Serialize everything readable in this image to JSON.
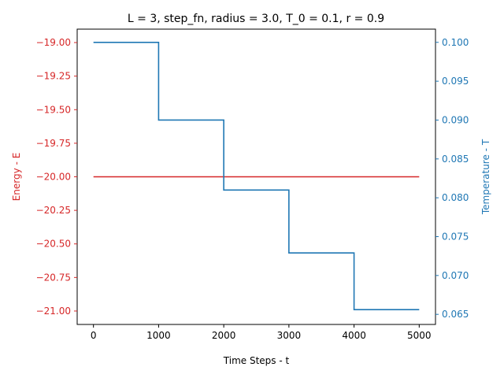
{
  "chart_data": {
    "type": "line",
    "title": "L = 3, step_fn, radius = 3.0, T_0 = 0.1, r = 0.9",
    "xlabel": "Time Steps - t",
    "ylabel_left": "Energy - E",
    "ylabel_right": "Temperature - T",
    "xlim": [
      -250,
      5250
    ],
    "ylim_left": [
      -21.1,
      -18.9
    ],
    "ylim_right": [
      0.0637,
      0.1017
    ],
    "xticks": [
      0,
      1000,
      2000,
      3000,
      4000,
      5000
    ],
    "xtick_labels": [
      "0",
      "1000",
      "2000",
      "3000",
      "4000",
      "5000"
    ],
    "yticks_left": [
      -19.0,
      -19.25,
      -19.5,
      -19.75,
      -20.0,
      -20.25,
      -20.5,
      -20.75,
      -21.0
    ],
    "ytick_labels_left": [
      "−19.00",
      "−19.25",
      "−19.50",
      "−19.75",
      "−20.00",
      "−20.25",
      "−20.50",
      "−20.75",
      "−21.00"
    ],
    "yticks_right": [
      0.065,
      0.07,
      0.075,
      0.08,
      0.085,
      0.09,
      0.095,
      0.1
    ],
    "ytick_labels_right": [
      "0.065",
      "0.070",
      "0.075",
      "0.080",
      "0.085",
      "0.090",
      "0.095",
      "0.100"
    ],
    "grid": false,
    "series": [
      {
        "axis": "left",
        "color": "#d62728",
        "x": [
          0,
          5000
        ],
        "y": [
          -20.0,
          -20.0
        ]
      },
      {
        "axis": "right",
        "color": "#1f77b4",
        "step": true,
        "x": [
          0,
          1000,
          1000,
          2000,
          2000,
          3000,
          3000,
          4000,
          4000,
          5000
        ],
        "y": [
          0.1,
          0.1,
          0.09,
          0.09,
          0.081,
          0.081,
          0.0729,
          0.0729,
          0.06561,
          0.06561
        ]
      }
    ],
    "left_axis_color": "#d62728",
    "right_axis_color": "#1f77b4"
  }
}
